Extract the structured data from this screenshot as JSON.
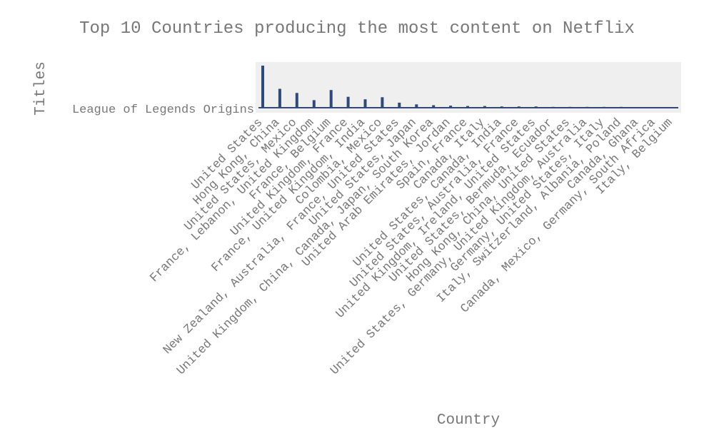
{
  "chart_data": {
    "type": "bar",
    "title": "Top 10 Countries producing the most content on Netflix",
    "xlabel": "Country",
    "ylabel": "Titles",
    "y_categories": [
      "League of Legends Origins"
    ],
    "grid": false,
    "legend": "none",
    "bar_color": "#2c4a7e",
    "categories": [
      "United States",
      "Hong Kong, China",
      "United States, Mexico",
      "France, Lebanon, United Kingdom",
      "France, Belgium",
      "United Kingdom, France",
      "France, United Kingdom, India",
      "Colombia, Mexico",
      "New Zealand, Australia, France, United States",
      "United States, Japan",
      "United Kingdom, China, Canada, Japan, South Korea",
      "United Arab Emirates, Jordan",
      "Spain, France",
      "Canada, Italy",
      "United States, Canada, India",
      "United States, Australia, France",
      "United Kingdom, Ireland, United States",
      "United States, Bermuda, Ecuador",
      "Hong Kong, China, United States",
      "United States, Germany, United Kingdom, Australia",
      "Germany, United States, Italy",
      "Italy, Switzerland, Albania, Poland",
      "Canada, Ghana",
      "Canada, Mexico, Germany, South Africa",
      "Italy, Belgium"
    ],
    "values": [
      100,
      45,
      35,
      18,
      42,
      26,
      20,
      25,
      12,
      8,
      6,
      5,
      4,
      4,
      3,
      3,
      3,
      2,
      2,
      2,
      2,
      2,
      1,
      1,
      1
    ],
    "y_categories_index": [
      0,
      0,
      0,
      0,
      0,
      0,
      0,
      0,
      0,
      0,
      0,
      0,
      0,
      0,
      0,
      0,
      0,
      0,
      0,
      0,
      0,
      0,
      0,
      0,
      0
    ]
  }
}
